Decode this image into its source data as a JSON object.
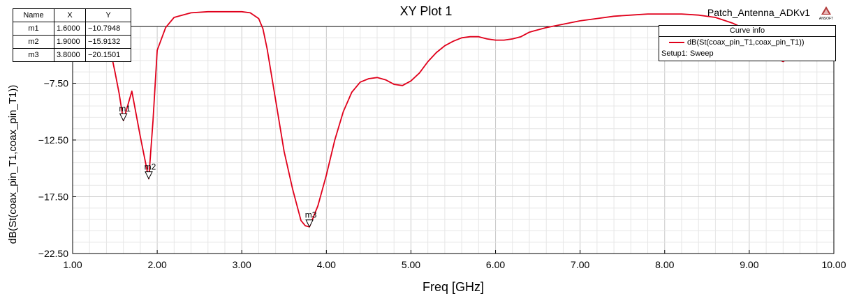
{
  "header": {
    "title": "XY Plot 1",
    "project": "Patch_Antenna_ADKv1",
    "logo_text": "ANSOFT"
  },
  "marker_table": {
    "headers": [
      "Name",
      "X",
      "Y"
    ],
    "rows": [
      {
        "name": "m1",
        "x": "1.6000",
        "y": "-10.7948"
      },
      {
        "name": "m2",
        "x": "1.9000",
        "y": "-15.9132"
      },
      {
        "name": "m3",
        "x": "3.8000",
        "y": "-20.1501"
      }
    ]
  },
  "curve_info": {
    "header": "Curve info",
    "trace_name": "dB(St(coax_pin_T1,coax_pin_T1))",
    "setup": "Setup1: Sweep",
    "trace_color": "#e0001b"
  },
  "chart_data": {
    "type": "line",
    "title": "XY Plot 1",
    "xlabel": "Freq [GHz]",
    "ylabel": "dB(St(coax_pin_T1,coax_pin_T1))",
    "xlim": [
      1.0,
      10.0
    ],
    "ylim": [
      -22.5,
      -2.5
    ],
    "x_ticks": [
      "1.00",
      "2.00",
      "3.00",
      "4.00",
      "5.00",
      "6.00",
      "7.00",
      "8.00",
      "9.00",
      "10.00"
    ],
    "x_tick_values": [
      1,
      2,
      3,
      4,
      5,
      6,
      7,
      8,
      9,
      10
    ],
    "y_ticks": [
      "-7.50",
      "-12.50",
      "-17.50",
      "-22.50"
    ],
    "y_tick_values": [
      -7.5,
      -12.5,
      -17.5,
      -22.5
    ],
    "grid": true,
    "series": [
      {
        "name": "dB(St(coax_pin_T1,coax_pin_T1))",
        "color": "#e0001b",
        "x": [
          1.4,
          1.45,
          1.5,
          1.55,
          1.6,
          1.7,
          1.8,
          1.9,
          1.95,
          2.0,
          2.1,
          2.2,
          2.4,
          2.6,
          2.8,
          3.0,
          3.1,
          3.2,
          3.25,
          3.3,
          3.4,
          3.5,
          3.6,
          3.7,
          3.75,
          3.8,
          3.9,
          4.0,
          4.1,
          4.2,
          4.3,
          4.4,
          4.5,
          4.6,
          4.7,
          4.8,
          4.9,
          5.0,
          5.1,
          5.2,
          5.3,
          5.4,
          5.5,
          5.6,
          5.7,
          5.8,
          5.9,
          6.0,
          6.1,
          6.2,
          6.3,
          6.4,
          6.6,
          6.8,
          7.0,
          7.2,
          7.4,
          7.6,
          7.8,
          8.0,
          8.2,
          8.4,
          8.6,
          8.8,
          9.0,
          9.15,
          9.2,
          9.25,
          9.3,
          9.35,
          9.4,
          9.5,
          9.6,
          9.7,
          9.8,
          9.9,
          10.0
        ],
        "y": [
          -2.7,
          -4.7,
          -6.5,
          -8.4,
          -10.79,
          -8.2,
          -12.2,
          -15.91,
          -10.8,
          -4.6,
          -2.6,
          -1.7,
          -1.3,
          -1.2,
          -1.2,
          -1.2,
          -1.3,
          -1.8,
          -2.7,
          -4.5,
          -9.0,
          -13.5,
          -16.8,
          -19.6,
          -20.05,
          -20.15,
          -18.3,
          -15.6,
          -12.5,
          -10.0,
          -8.3,
          -7.4,
          -7.1,
          -7.0,
          -7.2,
          -7.6,
          -7.7,
          -7.3,
          -6.6,
          -5.6,
          -4.8,
          -4.2,
          -3.8,
          -3.5,
          -3.4,
          -3.4,
          -3.6,
          -3.7,
          -3.7,
          -3.6,
          -3.4,
          -3.0,
          -2.6,
          -2.3,
          -2.0,
          -1.8,
          -1.6,
          -1.5,
          -1.4,
          -1.4,
          -1.4,
          -1.5,
          -1.7,
          -2.2,
          -2.9,
          -3.6,
          -4.3,
          -4.8,
          -5.1,
          -5.4,
          -5.6,
          -5.1,
          -4.4,
          -3.8,
          -3.4,
          -3.0,
          -2.9
        ]
      }
    ],
    "markers": [
      {
        "name": "m1",
        "x": 1.6,
        "y": -10.7948
      },
      {
        "name": "m2",
        "x": 1.9,
        "y": -15.9132
      },
      {
        "name": "m3",
        "x": 3.8,
        "y": -20.1501
      }
    ]
  }
}
